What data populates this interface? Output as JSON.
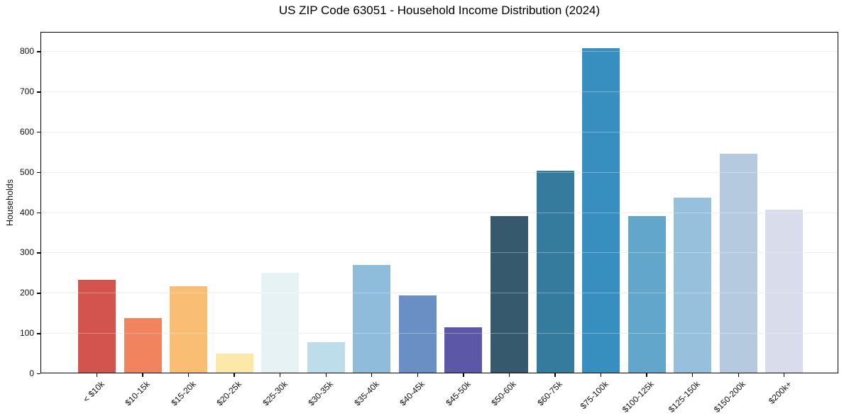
{
  "chart_data": {
    "type": "bar",
    "title": "US ZIP Code 63051 - Household Income Distribution (2024)",
    "xlabel": "",
    "ylabel": "Households",
    "categories": [
      "< $10k",
      "$10-15k",
      "$15-20k",
      "$20-25k",
      "$25-30k",
      "$30-35k",
      "$35-40k",
      "$40-45k",
      "$45-50k",
      "$50-60k",
      "$60-75k",
      "$75-100k",
      "$100-125k",
      "$125-150k",
      "$150-200k",
      "$200k+"
    ],
    "values": [
      232,
      137,
      217,
      50,
      249,
      77,
      269,
      193,
      115,
      390,
      504,
      808,
      390,
      437,
      546,
      406
    ],
    "bar_colors": [
      "#d3544f",
      "#f1845f",
      "#fabd74",
      "#fce9a9",
      "#e7f2f4",
      "#bcdde9",
      "#8fbcdb",
      "#6a8fc4",
      "#5c57a7",
      "#36596e",
      "#357b9e",
      "#378fc0",
      "#62a6cc",
      "#97c0dc",
      "#b5cade",
      "#d9dcea"
    ],
    "yticks": [
      0,
      100,
      200,
      300,
      400,
      500,
      600,
      700,
      800
    ],
    "ylim": [
      0,
      848
    ],
    "grid": "horizontal",
    "legend": "none",
    "grid_color": "#e8e8e8",
    "spine_color": "#000000",
    "background_color": "#ffffff"
  }
}
